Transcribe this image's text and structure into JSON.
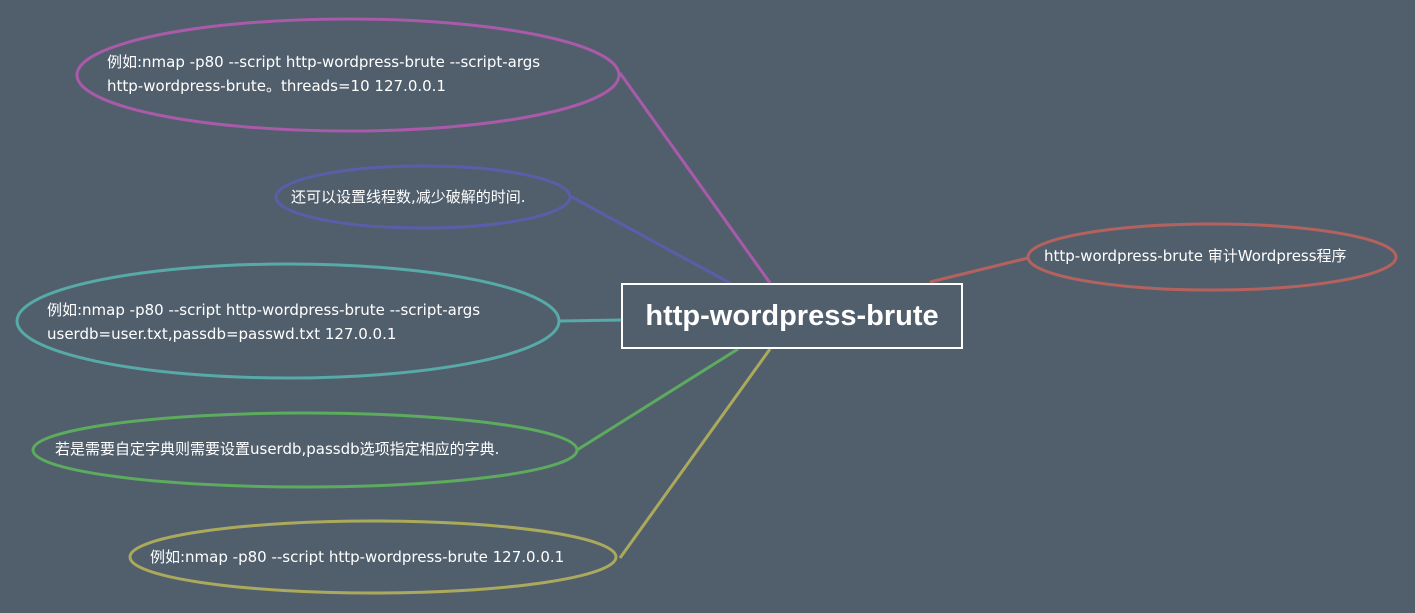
{
  "center": {
    "title": "http-wordpress-brute"
  },
  "branches": {
    "right": {
      "label": "http-wordpress-brute 审计Wordpress程序",
      "color": "#b5625f"
    },
    "example_threads": {
      "lines": [
        "例如:nmap -p80 --script http-wordpress-brute --script-args",
        "http-wordpress-brute。threads=10 127.0.0.1"
      ],
      "color": "#a95aa9"
    },
    "threads_tip": {
      "label": "还可以设置线程数,减少破解的时间.",
      "color": "#5a5ea9"
    },
    "example_userdb": {
      "lines": [
        "例如:nmap -p80 --script http-wordpress-brute --script-args",
        "userdb=user.txt,passdb=passwd.txt 127.0.0.1"
      ],
      "color": "#57aaa8"
    },
    "custom_dict": {
      "label": "若是需要自定字典则需要设置userdb,passdb选项指定相应的字典.",
      "color": "#5cab5e"
    },
    "example_basic": {
      "label": "例如:nmap -p80 --script http-wordpress-brute 127.0.0.1",
      "color": "#aaa95c"
    }
  }
}
